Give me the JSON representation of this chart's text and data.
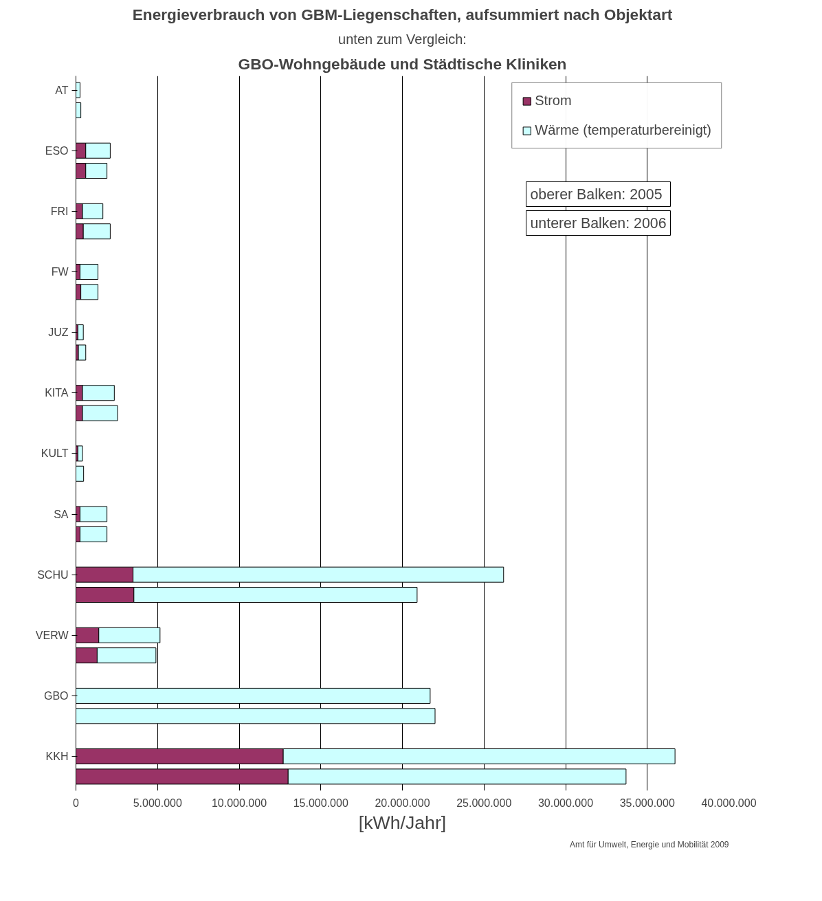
{
  "chart_data": {
    "type": "bar",
    "orientation": "horizontal",
    "stacked": true,
    "title": "Energieverbrauch von GBM-Liegenschaften, aufsummiert nach Objektart",
    "subtitle": "unten zum Vergleich:",
    "xlabel": "[kWh/Jahr]",
    "categories": [
      "AT",
      null,
      "ESO",
      null,
      "FRI",
      null,
      "FW",
      null,
      "JUZ",
      null,
      "KITA",
      null,
      "KULT",
      null,
      "SA",
      null,
      "SCHU",
      null,
      "VERW",
      null,
      "GBO",
      null,
      "KKH",
      null
    ],
    "series": [
      {
        "name": "Strom",
        "color": "#993366",
        "values": [
          null,
          null,
          600000,
          600000,
          400000,
          450000,
          250000,
          300000,
          120000,
          150000,
          400000,
          400000,
          120000,
          null,
          250000,
          250000,
          3500000,
          3550000,
          1400000,
          1300000,
          0,
          0,
          12700000,
          13000000
        ]
      },
      {
        "name": "Wärme (temperaturbereinigt)",
        "color": "#ccffff",
        "values": [
          250000,
          300000,
          1500000,
          1300000,
          1250000,
          1650000,
          1100000,
          1050000,
          330000,
          450000,
          1950000,
          2150000,
          280000,
          470000,
          1650000,
          1650000,
          22700000,
          17350000,
          3750000,
          3600000,
          21700000,
          22000000,
          24000000,
          20700000
        ]
      }
    ],
    "xlim": [
      0,
      40000000
    ],
    "xticks": [
      0,
      {
        "value": 5000000,
        "label": "5.000.000"
      },
      {
        "value": 10000000,
        "label": "10.000.000"
      },
      {
        "value": 15000000,
        "label": "15.000.000"
      },
      {
        "value": 20000000,
        "label": "20.000.000"
      },
      {
        "value": 25000000,
        "label": "25.000.000"
      },
      {
        "value": 30000000,
        "label": "30.000.000"
      },
      {
        "value": 35000000,
        "label": "35.000.000"
      },
      {
        "value": 40000000,
        "label": "40.000.000"
      }
    ],
    "grid": "x",
    "legend": "top right",
    "annotations": [
      "GBO-Wohngebäude und Städtische Kliniken",
      "oberer Balken:  2005",
      "unterer Balken: 2006",
      "Amt für Umwelt, Energie und Mobilität 2009"
    ]
  }
}
